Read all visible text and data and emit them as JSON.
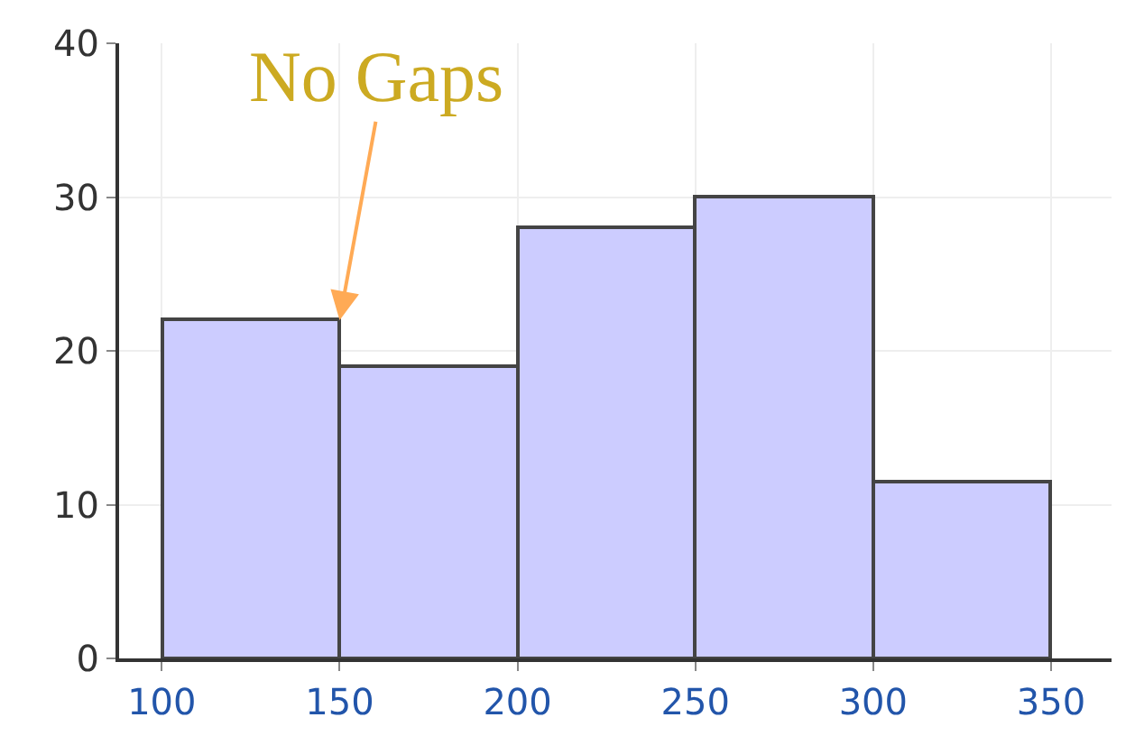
{
  "chart_data": {
    "type": "histogram",
    "bins": [
      100,
      150,
      200,
      250,
      300,
      350
    ],
    "values": [
      22,
      19,
      28,
      30,
      11.5
    ],
    "color": "#ccccff",
    "xlim": [
      88,
      367
    ],
    "ylim": [
      0,
      40
    ],
    "xticks": [
      100,
      150,
      200,
      250,
      300,
      350
    ],
    "yticks": [
      0,
      10,
      20,
      30,
      40
    ],
    "grid": true,
    "annotations": [
      {
        "text": "No Gaps",
        "x": 150,
        "y": 22
      }
    ]
  }
}
